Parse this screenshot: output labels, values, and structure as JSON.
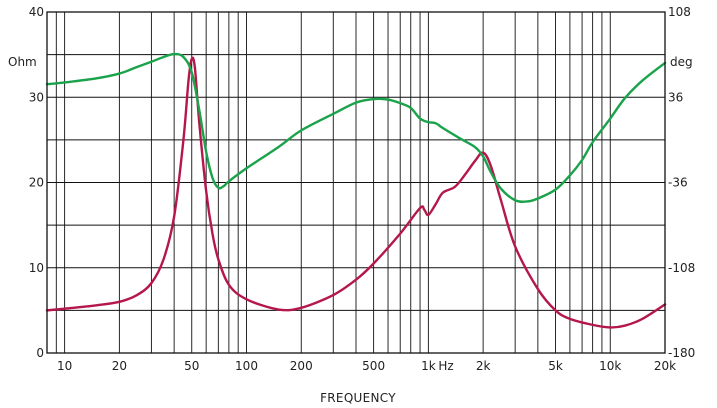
{
  "chart_data": {
    "type": "line",
    "xlabel": "FREQUENCY",
    "x_unit": "Hz",
    "x_scale": "log",
    "xlim": [
      8,
      20000
    ],
    "x_tick_values": [
      10,
      20,
      50,
      100,
      200,
      500,
      1000,
      2000,
      5000,
      10000,
      20000
    ],
    "x_tick_labels": [
      "10",
      "20",
      "50",
      "100",
      "200",
      "500",
      "1k",
      "2k",
      "5k",
      "10k",
      "20k"
    ],
    "ylabel_left": "Ohm",
    "ylim_left": [
      0,
      40
    ],
    "y_left_ticks": [
      0,
      10,
      20,
      30,
      40
    ],
    "y_left_tick_labels": [
      "0",
      "10",
      "20",
      "30",
      "40"
    ],
    "ylabel_right": "deg",
    "ylim_right": [
      -180,
      108
    ],
    "y_right_ticks": [
      -180,
      -108,
      -36,
      36,
      108
    ],
    "y_right_tick_labels": [
      "-180",
      "-108",
      "-36",
      "36",
      "108"
    ],
    "grid": true,
    "series": [
      {
        "color": "#b5174a",
        "axis": "left",
        "points": [
          [
            8,
            5.0
          ],
          [
            10,
            5.2
          ],
          [
            15,
            5.6
          ],
          [
            20,
            6.0
          ],
          [
            25,
            6.8
          ],
          [
            30,
            8.2
          ],
          [
            35,
            11.0
          ],
          [
            40,
            16.0
          ],
          [
            45,
            25.0
          ],
          [
            48,
            32.0
          ],
          [
            50,
            34.5
          ],
          [
            52,
            33.5
          ],
          [
            55,
            27.0
          ],
          [
            60,
            19.0
          ],
          [
            65,
            14.0
          ],
          [
            70,
            11.0
          ],
          [
            80,
            8.0
          ],
          [
            100,
            6.3
          ],
          [
            150,
            5.1
          ],
          [
            200,
            5.3
          ],
          [
            300,
            6.8
          ],
          [
            400,
            8.6
          ],
          [
            500,
            10.5
          ],
          [
            700,
            14.0
          ],
          [
            900,
            17.0
          ],
          [
            950,
            16.8
          ],
          [
            1000,
            16.2
          ],
          [
            1100,
            17.5
          ],
          [
            1200,
            18.8
          ],
          [
            1400,
            19.5
          ],
          [
            1600,
            21.0
          ],
          [
            1800,
            22.5
          ],
          [
            2000,
            23.5
          ],
          [
            2200,
            22.0
          ],
          [
            2500,
            18.0
          ],
          [
            3000,
            12.5
          ],
          [
            4000,
            7.5
          ],
          [
            5000,
            5.0
          ],
          [
            6000,
            4.0
          ],
          [
            8000,
            3.3
          ],
          [
            10000,
            3.0
          ],
          [
            12000,
            3.2
          ],
          [
            15000,
            4.0
          ],
          [
            20000,
            5.7
          ]
        ]
      },
      {
        "color": "#1aa34a",
        "axis": "right",
        "points": [
          [
            8,
            47.0
          ],
          [
            10,
            48.5
          ],
          [
            15,
            52.0
          ],
          [
            20,
            56.0
          ],
          [
            25,
            61.5
          ],
          [
            30,
            66.0
          ],
          [
            35,
            70.0
          ],
          [
            40,
            72.5
          ],
          [
            45,
            70.0
          ],
          [
            50,
            57.0
          ],
          [
            55,
            25.0
          ],
          [
            60,
            -10.0
          ],
          [
            65,
            -32.0
          ],
          [
            70,
            -40.5
          ],
          [
            75,
            -39.0
          ],
          [
            80,
            -35.0
          ],
          [
            100,
            -24.0
          ],
          [
            150,
            -6.0
          ],
          [
            200,
            8.0
          ],
          [
            300,
            22.0
          ],
          [
            400,
            31.5
          ],
          [
            500,
            34.5
          ],
          [
            600,
            34.0
          ],
          [
            700,
            31.0
          ],
          [
            800,
            27.0
          ],
          [
            900,
            18.0
          ],
          [
            1000,
            15.0
          ],
          [
            1100,
            14.0
          ],
          [
            1200,
            10.0
          ],
          [
            1500,
            1.0
          ],
          [
            1800,
            -6.0
          ],
          [
            2000,
            -14.0
          ],
          [
            2200,
            -27.0
          ],
          [
            2500,
            -41.0
          ],
          [
            3000,
            -51.0
          ],
          [
            3500,
            -52.0
          ],
          [
            4000,
            -49.5
          ],
          [
            5000,
            -42.0
          ],
          [
            6000,
            -30.0
          ],
          [
            7000,
            -17.0
          ],
          [
            8000,
            -2.0
          ],
          [
            10000,
            18.0
          ],
          [
            12000,
            35.0
          ],
          [
            15000,
            50.0
          ],
          [
            20000,
            65.0
          ]
        ]
      }
    ]
  }
}
